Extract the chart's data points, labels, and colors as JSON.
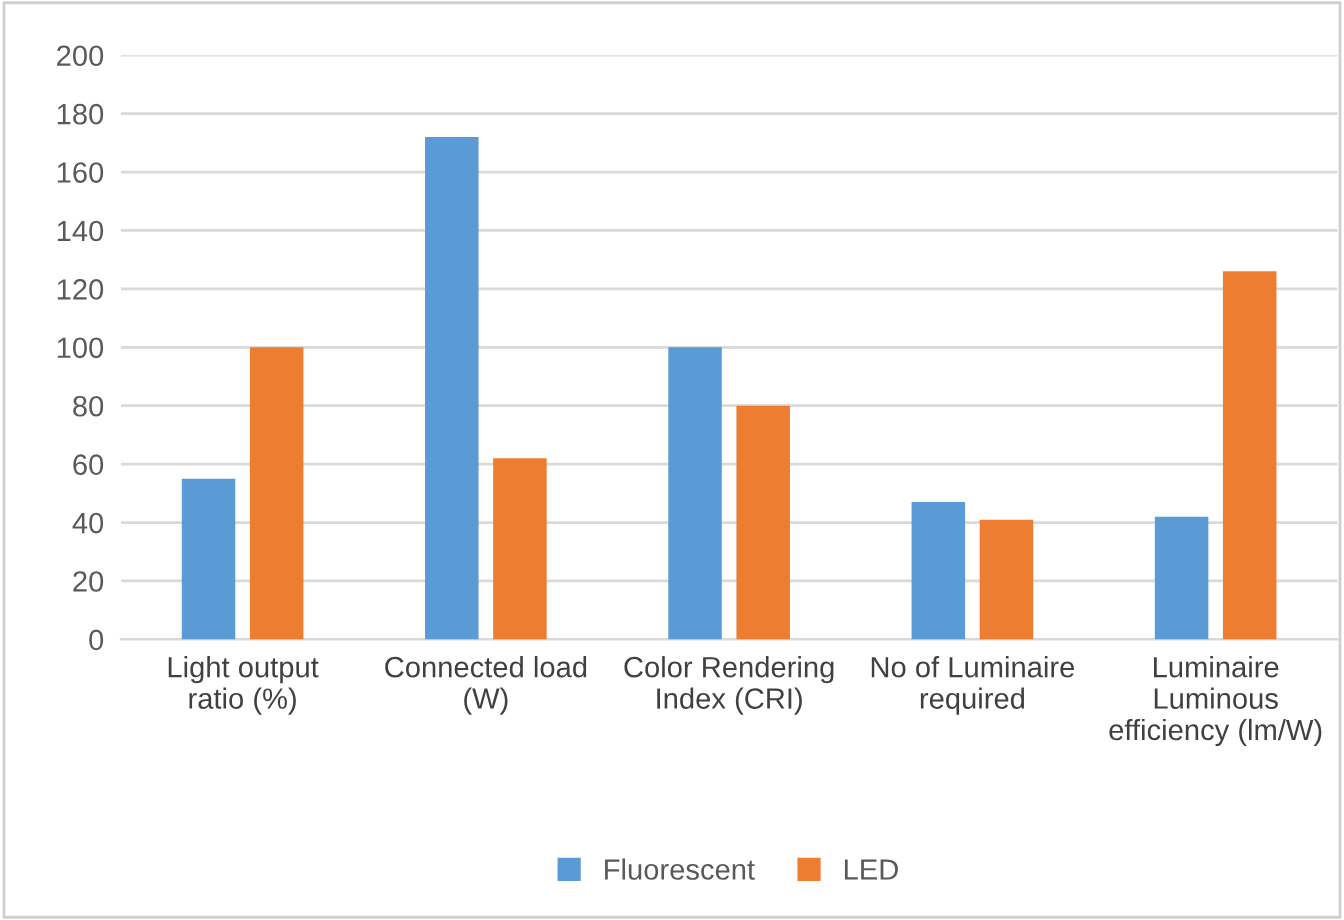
{
  "chart_data": {
    "type": "bar",
    "categories": [
      "Light output\nratio (%)",
      "Connected load\n(W)",
      "Color Rendering\nIndex (CRI)",
      "No of Luminaire\nrequired",
      "Luminaire\nLuminous\nefficiency (lm/W)"
    ],
    "series": [
      {
        "name": "Fluorescent",
        "color": "#5b9bd5",
        "values": [
          55,
          172,
          100,
          47,
          42
        ]
      },
      {
        "name": "LED",
        "color": "#ed7d31",
        "values": [
          100,
          62,
          80,
          41,
          126
        ]
      }
    ],
    "ylim": [
      0,
      200
    ],
    "yticks": [
      0,
      20,
      40,
      60,
      80,
      100,
      120,
      140,
      160,
      180,
      200
    ],
    "grid": "y",
    "legend": "bottom"
  }
}
